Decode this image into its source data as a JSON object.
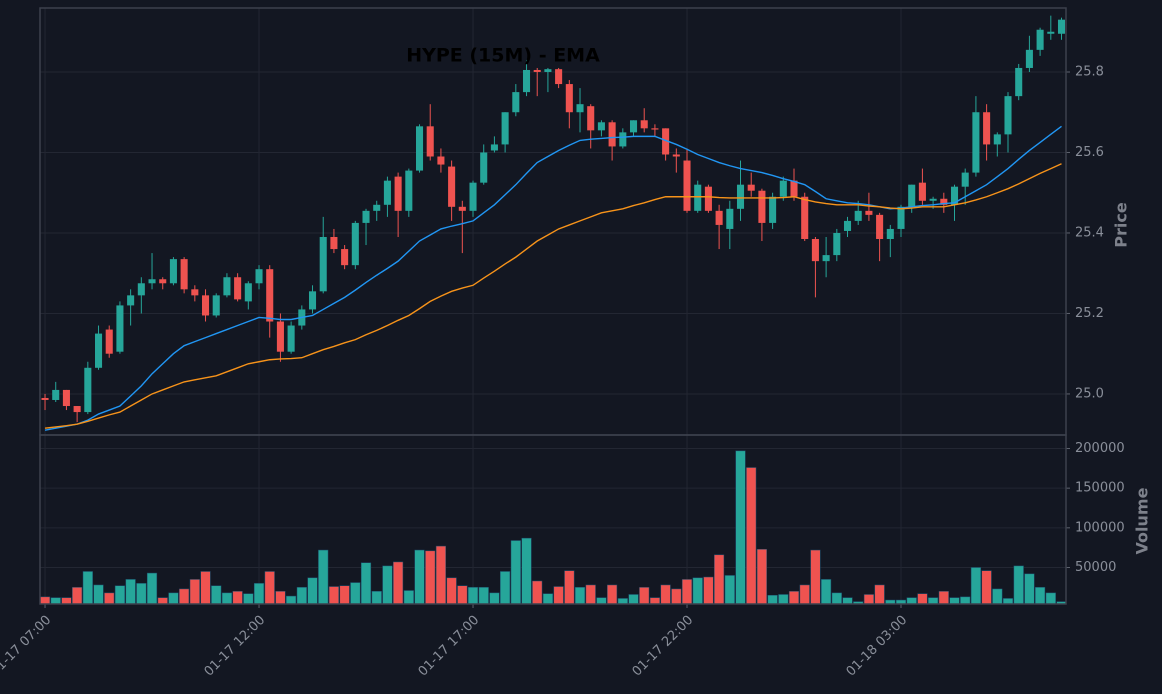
{
  "chart_data": [
    {
      "type": "candlestick",
      "title": "HYPE (15M) - EMA",
      "ylabel": "Price",
      "xlim": [
        -0.47,
        95.42
      ],
      "ylim": [
        24.898,
        25.959
      ],
      "yticks": [
        {
          "value": 25,
          "label": "25.0"
        },
        25.2,
        25.4,
        25.6,
        25.8
      ],
      "xticks": [
        0,
        20,
        40,
        60,
        80
      ],
      "grid": true,
      "up_color": "#26a69a",
      "down_color": "#ef5350",
      "open": [
        24.99,
        24.985,
        25.01,
        24.97,
        24.955,
        25.065,
        25.16,
        25.105,
        25.22,
        25.245,
        25.275,
        25.285,
        25.275,
        25.335,
        25.26,
        25.245,
        25.195,
        25.245,
        25.29,
        25.23,
        25.275,
        25.31,
        25.18,
        25.105,
        25.17,
        25.21,
        25.255,
        25.39,
        25.36,
        25.32,
        25.425,
        25.455,
        25.47,
        25.54,
        25.455,
        25.555,
        25.665,
        25.59,
        25.565,
        25.465,
        25.455,
        25.525,
        25.605,
        25.62,
        25.7,
        25.75,
        25.805,
        25.8,
        25.807,
        25.77,
        25.7,
        25.715,
        25.655,
        25.675,
        25.615,
        25.65,
        25.68,
        25.66,
        25.66,
        25.595,
        25.58,
        25.455,
        25.515,
        25.455,
        25.41,
        25.46,
        25.52,
        25.505,
        25.425,
        25.49,
        25.53,
        25.49,
        25.385,
        25.33,
        25.345,
        25.405,
        25.43,
        25.455,
        25.445,
        25.385,
        25.41,
        25.465,
        25.525,
        25.48,
        25.485,
        25.47,
        25.515,
        25.55,
        25.7,
        25.62,
        25.645,
        25.74,
        25.81,
        25.855,
        25.895,
        25.895
      ],
      "high": [
        25.0,
        25.03,
        25.01,
        24.97,
        25.08,
        25.17,
        25.17,
        25.23,
        25.26,
        25.29,
        25.35,
        25.29,
        25.34,
        25.34,
        25.27,
        25.26,
        25.25,
        25.3,
        25.3,
        25.28,
        25.32,
        25.32,
        25.2,
        25.18,
        25.22,
        25.27,
        25.44,
        25.41,
        25.37,
        25.43,
        25.46,
        25.48,
        25.54,
        25.55,
        25.56,
        25.67,
        25.72,
        25.61,
        25.58,
        25.48,
        25.53,
        25.62,
        25.64,
        25.7,
        25.77,
        25.83,
        25.81,
        25.81,
        25.81,
        25.78,
        25.76,
        25.72,
        25.68,
        25.68,
        25.66,
        25.68,
        25.71,
        25.67,
        25.66,
        25.61,
        25.61,
        25.53,
        25.52,
        25.47,
        25.48,
        25.58,
        25.55,
        25.51,
        25.5,
        25.54,
        25.56,
        25.5,
        25.39,
        25.39,
        25.41,
        25.44,
        25.48,
        25.5,
        25.45,
        25.42,
        25.47,
        25.52,
        25.56,
        25.49,
        25.5,
        25.52,
        25.56,
        25.74,
        25.72,
        25.65,
        25.75,
        25.82,
        25.89,
        25.91,
        25.94,
        25.935
      ],
      "low": [
        24.96,
        24.98,
        24.96,
        24.93,
        24.95,
        25.06,
        25.09,
        25.1,
        25.17,
        25.2,
        25.26,
        25.26,
        25.27,
        25.25,
        25.23,
        25.18,
        25.19,
        25.24,
        25.23,
        25.21,
        25.26,
        25.14,
        25.08,
        25.1,
        25.16,
        25.2,
        25.25,
        25.35,
        25.31,
        25.31,
        25.37,
        25.43,
        25.44,
        25.39,
        25.44,
        25.55,
        25.58,
        25.55,
        25.43,
        25.35,
        25.44,
        25.52,
        25.6,
        25.6,
        25.69,
        25.74,
        25.74,
        25.75,
        25.76,
        25.66,
        25.65,
        25.61,
        25.64,
        25.58,
        25.61,
        25.64,
        25.65,
        25.64,
        25.58,
        25.55,
        25.45,
        25.45,
        25.45,
        25.36,
        25.36,
        25.43,
        25.49,
        25.38,
        25.41,
        25.48,
        25.48,
        25.38,
        25.24,
        25.29,
        25.33,
        25.39,
        25.42,
        25.43,
        25.33,
        25.34,
        25.39,
        25.45,
        25.47,
        25.46,
        25.45,
        25.43,
        25.47,
        25.54,
        25.58,
        25.59,
        25.6,
        25.73,
        25.8,
        25.84,
        25.88,
        25.88
      ],
      "close": [
        24.985,
        25.01,
        24.97,
        24.955,
        25.065,
        25.15,
        25.1,
        25.22,
        25.245,
        25.275,
        25.285,
        25.275,
        25.335,
        25.26,
        25.245,
        25.195,
        25.245,
        25.29,
        25.235,
        25.275,
        25.31,
        25.18,
        25.105,
        25.17,
        25.21,
        25.255,
        25.39,
        25.36,
        25.32,
        25.425,
        25.455,
        25.47,
        25.53,
        25.455,
        25.555,
        25.665,
        25.59,
        25.57,
        25.465,
        25.455,
        25.525,
        25.6,
        25.62,
        25.7,
        25.75,
        25.805,
        25.8,
        25.807,
        25.77,
        25.7,
        25.72,
        25.655,
        25.675,
        25.615,
        25.65,
        25.68,
        25.66,
        25.657,
        25.595,
        25.59,
        25.455,
        25.52,
        25.455,
        25.42,
        25.46,
        25.52,
        25.505,
        25.425,
        25.49,
        25.53,
        25.49,
        25.385,
        25.33,
        25.345,
        25.4,
        25.43,
        25.455,
        25.445,
        25.385,
        25.41,
        25.465,
        25.52,
        25.48,
        25.485,
        25.47,
        25.515,
        25.55,
        25.7,
        25.62,
        25.645,
        25.74,
        25.81,
        25.855,
        25.905,
        25.9,
        25.93
      ],
      "series": [
        {
          "color": "#2196f3",
          "values": [
            24.91,
            24.915,
            24.92,
            24.925,
            24.935,
            24.95,
            24.96,
            24.97,
            24.995,
            25.02,
            25.05,
            25.075,
            25.1,
            25.12,
            25.13,
            25.14,
            25.15,
            25.16,
            25.17,
            25.18,
            25.19,
            25.188,
            25.185,
            25.185,
            25.19,
            25.195,
            25.21,
            25.225,
            25.24,
            25.258,
            25.277,
            25.295,
            25.312,
            25.33,
            25.355,
            25.38,
            25.395,
            25.41,
            25.417,
            25.423,
            25.43,
            25.45,
            25.47,
            25.495,
            25.52,
            25.548,
            25.575,
            25.59,
            25.605,
            25.618,
            25.63,
            25.633,
            25.635,
            25.637,
            25.638,
            25.64,
            25.64,
            25.64,
            25.63,
            25.62,
            25.608,
            25.595,
            25.585,
            25.575,
            25.567,
            25.56,
            25.555,
            25.55,
            25.543,
            25.535,
            25.528,
            25.52,
            25.503,
            25.485,
            25.48,
            25.475,
            25.473,
            25.47,
            25.465,
            25.46,
            25.462,
            25.465,
            25.468,
            25.47,
            25.473,
            25.475,
            25.49,
            25.505,
            25.52,
            25.54,
            25.56,
            25.583,
            25.605,
            25.625,
            25.645,
            25.665
          ]
        },
        {
          "color": "#f7931a",
          "values": [
            24.915,
            24.918,
            24.921,
            24.925,
            24.932,
            24.94,
            24.948,
            24.955,
            24.97,
            24.985,
            25.0,
            25.01,
            25.02,
            25.03,
            25.035,
            25.04,
            25.045,
            25.055,
            25.065,
            25.075,
            25.08,
            25.085,
            25.087,
            25.088,
            25.09,
            25.1,
            25.11,
            25.118,
            25.127,
            25.135,
            25.147,
            25.158,
            25.17,
            25.183,
            25.195,
            25.212,
            25.23,
            25.243,
            25.255,
            25.263,
            25.27,
            25.288,
            25.305,
            25.323,
            25.34,
            25.36,
            25.38,
            25.395,
            25.41,
            25.42,
            25.43,
            25.44,
            25.45,
            25.455,
            25.46,
            25.468,
            25.475,
            25.483,
            25.49,
            25.49,
            25.49,
            25.49,
            25.49,
            25.488,
            25.487,
            25.487,
            25.487,
            25.487,
            25.487,
            25.488,
            25.49,
            25.483,
            25.477,
            25.473,
            25.47,
            25.47,
            25.47,
            25.467,
            25.465,
            25.462,
            25.46,
            25.462,
            25.465,
            25.465,
            25.465,
            25.47,
            25.475,
            25.482,
            25.49,
            25.5,
            25.51,
            25.522,
            25.535,
            25.548,
            25.56,
            25.572
          ]
        }
      ]
    },
    {
      "type": "bar",
      "ylabel": "Volume",
      "xlim": [
        -0.47,
        95.42
      ],
      "ylim": [
        4000,
        217000
      ],
      "yticks": [
        50000,
        100000,
        150000,
        200000
      ],
      "grid": true,
      "xticks": [
        {
          "value": 0,
          "label": "01-17 07:00"
        },
        {
          "value": 20,
          "label": "01-17 12:00"
        },
        {
          "value": 40,
          "label": "01-17 17:00"
        },
        {
          "value": 60,
          "label": "01-17 22:00"
        },
        {
          "value": 80,
          "label": "01-18 03:00"
        }
      ],
      "values": [
        13000,
        12000,
        12000,
        25000,
        45000,
        28000,
        18000,
        27000,
        35000,
        30000,
        43000,
        12000,
        18000,
        23000,
        35000,
        45000,
        27000,
        18000,
        20000,
        17000,
        30000,
        45000,
        20000,
        14000,
        25000,
        37000,
        72000,
        26000,
        27000,
        31000,
        56000,
        20000,
        52000,
        57000,
        21000,
        72000,
        71000,
        77000,
        37000,
        27000,
        25000,
        25000,
        18000,
        45000,
        84000,
        87000,
        33000,
        17000,
        26000,
        46000,
        25000,
        28000,
        12000,
        28000,
        11000,
        16000,
        25000,
        12000,
        28000,
        23000,
        35000,
        37000,
        38000,
        66000,
        40000,
        197000,
        176000,
        73000,
        15000,
        16000,
        20000,
        28000,
        72000,
        35000,
        18000,
        12000,
        7000,
        16000,
        28000,
        9000,
        9000,
        12000,
        17000,
        12000,
        20000,
        12000,
        13000,
        50000,
        46000,
        23000,
        11000,
        52000,
        42000,
        25000,
        18000,
        7000
      ]
    }
  ]
}
